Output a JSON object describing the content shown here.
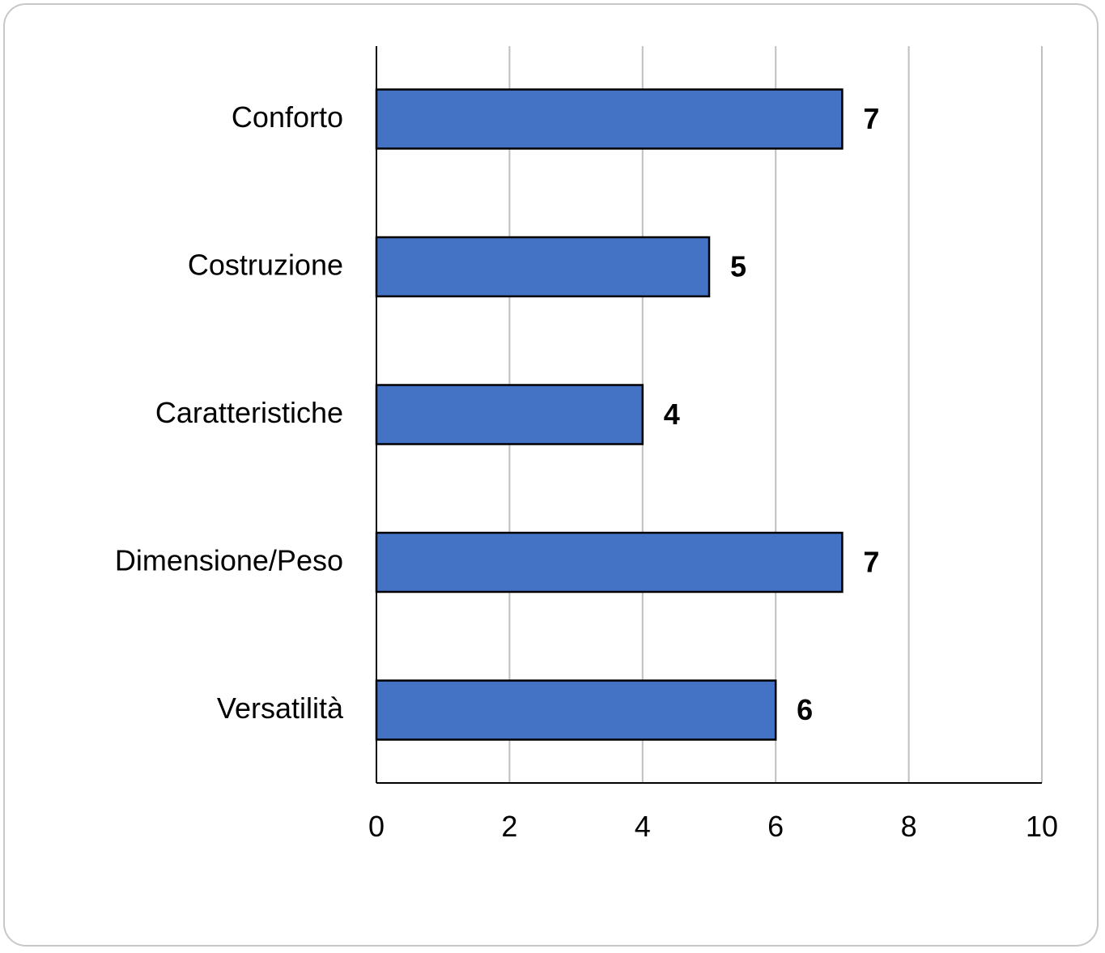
{
  "chart_data": {
    "type": "bar",
    "orientation": "horizontal",
    "categories": [
      "Conforto",
      "Costruzione",
      "Caratteristiche",
      "Dimensione/Peso",
      "Versatilità"
    ],
    "values": [
      7,
      5,
      4,
      7,
      6
    ],
    "data_labels": [
      "7",
      "5",
      "4",
      "7",
      "6"
    ],
    "xlim": [
      0,
      10
    ],
    "x_ticks": [
      0,
      2,
      4,
      6,
      8,
      10
    ],
    "x_tick_labels": [
      "0",
      "2",
      "4",
      "6",
      "8",
      "10"
    ],
    "title": "",
    "xlabel": "",
    "ylabel": "",
    "grid": "vertical",
    "legend": "none",
    "colors": {
      "bar_fill": "#4472c4",
      "bar_stroke": "#000000",
      "grid": "#bfbfbf",
      "axis": "#000000"
    }
  }
}
